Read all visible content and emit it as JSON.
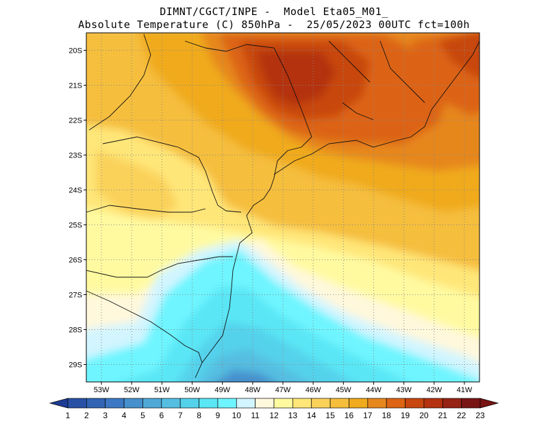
{
  "header": {
    "line1": "DIMNT/CGCT/INPE -  Model Eta05_M01_",
    "line2": "Absolute Temperature (C) 850hPa -  25/05/2023 00UTC fct=100h"
  },
  "map": {
    "lat_labels": [
      "20S",
      "21S",
      "22S",
      "23S",
      "24S",
      "25S",
      "26S",
      "27S",
      "28S",
      "29S"
    ],
    "lon_labels": [
      "53W",
      "52W",
      "51W",
      "50W",
      "49W",
      "48W",
      "47W",
      "46W",
      "45W",
      "44W",
      "43W",
      "42W",
      "41W"
    ],
    "lat_range": [
      -29.5,
      -19.5
    ],
    "lon_range": [
      -53.5,
      -40.5
    ],
    "grid": true
  },
  "colorbar": {
    "labels": [
      "1",
      "2",
      "3",
      "4",
      "5",
      "6",
      "7",
      "8",
      "9",
      "10",
      "11",
      "12",
      "13",
      "14",
      "15",
      "16",
      "17",
      "18",
      "19",
      "20",
      "21",
      "22",
      "23"
    ],
    "colors": [
      "#1e3c96",
      "#2850a5",
      "#3264b4",
      "#3c78c3",
      "#4690cd",
      "#50a8d7",
      "#55bee1",
      "#55d2eb",
      "#5ae6f5",
      "#6ef5ff",
      "#d2f5ff",
      "#fff8dc",
      "#fffaa0",
      "#ffe678",
      "#fad25a",
      "#f5be3c",
      "#f0aa1e",
      "#e6871e",
      "#dc6414",
      "#c8460f",
      "#b4320f",
      "#962314",
      "#781414"
    ]
  }
}
